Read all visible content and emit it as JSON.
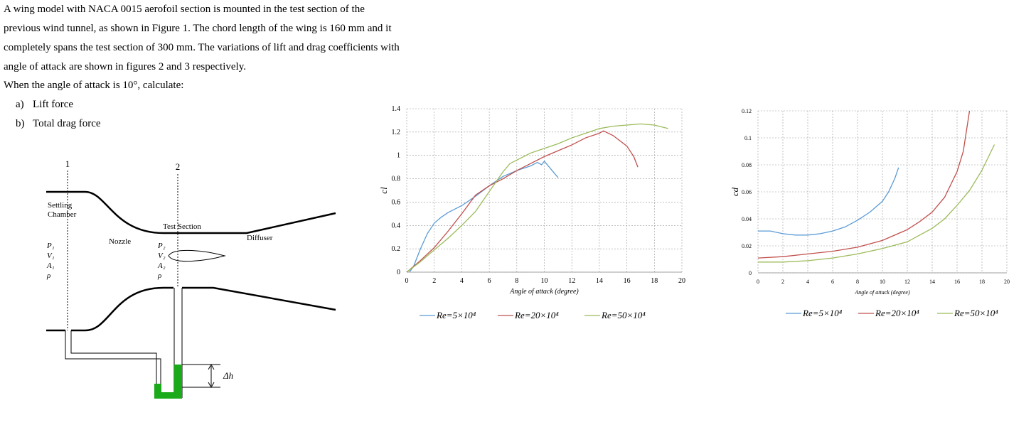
{
  "document": {
    "lines": [
      "A wing model with NACA 0015 aerofoil section is mounted in the test section of the",
      "previous wind tunnel, as shown in Figure 1. The chord length of the wing is 160 mm and it",
      "completely spans the test section of 300 mm. The variations of lift and drag coefficients with",
      "angle of attack are shown in figures 2 and 3 respectively."
    ],
    "question": "When the angle of attack is 10°, calculate:",
    "items": [
      {
        "label": "a)",
        "text": "Lift force"
      },
      {
        "label": "b)",
        "text": "Total drag force"
      }
    ]
  },
  "diagram": {
    "station_1": "1",
    "station_2": "2",
    "settling": [
      "Settling",
      "Chamber"
    ],
    "nozzle": "Nozzle",
    "test_section": "Test Section",
    "diffuser": "Diffuser",
    "symbols_1": [
      "P₁",
      "V₁",
      "A₁",
      "ρ"
    ],
    "symbols_2": [
      "P₂",
      "V₂",
      "A₂",
      "ρ"
    ],
    "dh": "Δh"
  },
  "chart_data": [
    {
      "type": "line",
      "x_label": "Angle of attack (degree)",
      "y_label": "cl",
      "xlim": [
        0,
        20
      ],
      "xticks": [
        0,
        2,
        4,
        6,
        8,
        10,
        12,
        14,
        16,
        18,
        20
      ],
      "ylim": [
        0,
        1.4
      ],
      "yticks": [
        0,
        0.2,
        0.4,
        0.6,
        0.8,
        1,
        1.2,
        1.4
      ],
      "grid": true,
      "series": [
        {
          "name": "Re=5×10⁴",
          "color": "#5b9bd5",
          "x": [
            0.2,
            0.5,
            1,
            1.5,
            2,
            2.5,
            3,
            4,
            5,
            6,
            7,
            8,
            9,
            9.5,
            9.8,
            10,
            10.5,
            11
          ],
          "values": [
            0,
            0.05,
            0.2,
            0.33,
            0.42,
            0.47,
            0.51,
            0.57,
            0.65,
            0.74,
            0.82,
            0.87,
            0.91,
            0.94,
            0.92,
            0.95,
            0.88,
            0.81
          ]
        },
        {
          "name": "Re=20×10⁴",
          "color": "#c0504d",
          "x": [
            0,
            1,
            2,
            3,
            4,
            5,
            6,
            7,
            8,
            9,
            10,
            11,
            12,
            13,
            14,
            14.3,
            15,
            16,
            16.5,
            16.8
          ],
          "values": [
            0,
            0.1,
            0.21,
            0.35,
            0.5,
            0.66,
            0.74,
            0.8,
            0.87,
            0.93,
            0.99,
            1.04,
            1.09,
            1.15,
            1.19,
            1.21,
            1.17,
            1.08,
            0.99,
            0.9
          ]
        },
        {
          "name": "Re=50×10⁴",
          "color": "#9bbb59",
          "x": [
            0,
            1,
            2,
            3,
            4,
            5,
            6,
            7,
            7.5,
            8,
            9,
            10,
            11,
            12,
            13,
            14,
            15,
            16,
            17,
            18,
            19
          ],
          "values": [
            0,
            0.09,
            0.19,
            0.29,
            0.4,
            0.52,
            0.69,
            0.86,
            0.93,
            0.96,
            1.02,
            1.06,
            1.1,
            1.15,
            1.19,
            1.23,
            1.25,
            1.26,
            1.27,
            1.26,
            1.23
          ]
        }
      ]
    },
    {
      "type": "line",
      "x_label": "Angle of attack (degree)",
      "y_label": "cd",
      "xlim": [
        0,
        20
      ],
      "xticks": [
        0,
        2,
        4,
        6,
        8,
        10,
        12,
        14,
        16,
        18,
        20
      ],
      "ylim": [
        0,
        0.12
      ],
      "yticks": [
        0,
        0.02,
        0.04,
        0.06,
        0.08,
        0.1,
        0.12
      ],
      "grid": true,
      "series": [
        {
          "name": "Re=5×10⁴",
          "color": "#5b9bd5",
          "x": [
            0,
            1,
            2,
            3,
            4,
            5,
            6,
            7,
            8,
            9,
            10,
            10.5,
            11,
            11.3
          ],
          "values": [
            0.031,
            0.031,
            0.029,
            0.028,
            0.028,
            0.029,
            0.031,
            0.034,
            0.039,
            0.045,
            0.053,
            0.06,
            0.07,
            0.078
          ]
        },
        {
          "name": "Re=20×10⁴",
          "color": "#c0504d",
          "x": [
            0,
            2,
            4,
            6,
            8,
            10,
            12,
            13,
            14,
            15,
            16,
            16.5,
            17
          ],
          "values": [
            0.011,
            0.012,
            0.014,
            0.016,
            0.019,
            0.024,
            0.032,
            0.038,
            0.045,
            0.056,
            0.075,
            0.09,
            0.12
          ]
        },
        {
          "name": "Re=50×10⁴",
          "color": "#9bbb59",
          "x": [
            0,
            2,
            4,
            6,
            8,
            10,
            12,
            14,
            15,
            16,
            17,
            18,
            19
          ],
          "values": [
            0.008,
            0.008,
            0.009,
            0.011,
            0.014,
            0.018,
            0.023,
            0.033,
            0.04,
            0.05,
            0.061,
            0.076,
            0.095
          ]
        }
      ]
    }
  ]
}
